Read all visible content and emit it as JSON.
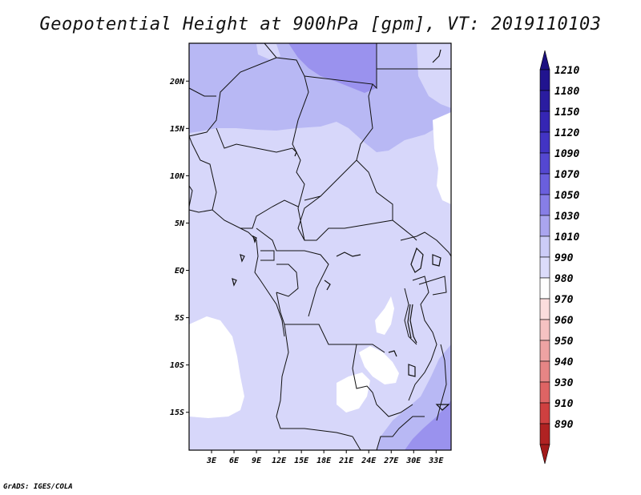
{
  "title": "Geopotential Height at 900hPa [gpm], VT: 2019110103",
  "credit": "GrADS: IGES/COLA",
  "map": {
    "lon_range": [
      0,
      35
    ],
    "lat_range": [
      -19,
      24
    ],
    "lat_ticks": [
      {
        "value": 20,
        "label": "20N"
      },
      {
        "value": 15,
        "label": "15N"
      },
      {
        "value": 10,
        "label": "10N"
      },
      {
        "value": 5,
        "label": "5N"
      },
      {
        "value": 0,
        "label": "EQ"
      },
      {
        "value": -5,
        "label": "5S"
      },
      {
        "value": -10,
        "label": "10S"
      },
      {
        "value": -15,
        "label": "15S"
      }
    ],
    "lon_ticks": [
      {
        "value": 3,
        "label": "3E"
      },
      {
        "value": 6,
        "label": "6E"
      },
      {
        "value": 9,
        "label": "9E"
      },
      {
        "value": 12,
        "label": "12E"
      },
      {
        "value": 15,
        "label": "15E"
      },
      {
        "value": 18,
        "label": "18E"
      },
      {
        "value": 21,
        "label": "21E"
      },
      {
        "value": 24,
        "label": "24E"
      },
      {
        "value": 27,
        "label": "27E"
      },
      {
        "value": 30,
        "label": "30E"
      },
      {
        "value": 33,
        "label": "33E"
      }
    ]
  },
  "colorbar": {
    "levels": [
      {
        "label": "1210",
        "color": "#21148f"
      },
      {
        "label": "1180",
        "color": "#2a1ca0"
      },
      {
        "label": "1150",
        "color": "#3526b4"
      },
      {
        "label": "1120",
        "color": "#4234c4"
      },
      {
        "label": "1090",
        "color": "#5447d1"
      },
      {
        "label": "1070",
        "color": "#6a5fdd"
      },
      {
        "label": "1050",
        "color": "#877ee6"
      },
      {
        "label": "1030",
        "color": "#aaa5ef"
      },
      {
        "label": "1010",
        "color": "#ccccf7"
      },
      {
        "label": "990",
        "color": "#dcdcfb"
      },
      {
        "label": "980",
        "color": "#fefefe"
      },
      {
        "label": "970",
        "color": "#fbdddd"
      },
      {
        "label": "960",
        "color": "#f5c2c2"
      },
      {
        "label": "950",
        "color": "#eea3a3"
      },
      {
        "label": "940",
        "color": "#e68585"
      },
      {
        "label": "930",
        "color": "#de6464"
      },
      {
        "label": "910",
        "color": "#cf4040"
      },
      {
        "label": "890",
        "color": "#b02222"
      }
    ],
    "top_arrow_color": "#1c1080",
    "bottom_arrow_color": "#a21a1a"
  },
  "field_colors": {
    "base": "#d7d7fa",
    "mid": "#b8b8f4",
    "high": "#9a92ee",
    "low": "#ffffff"
  }
}
